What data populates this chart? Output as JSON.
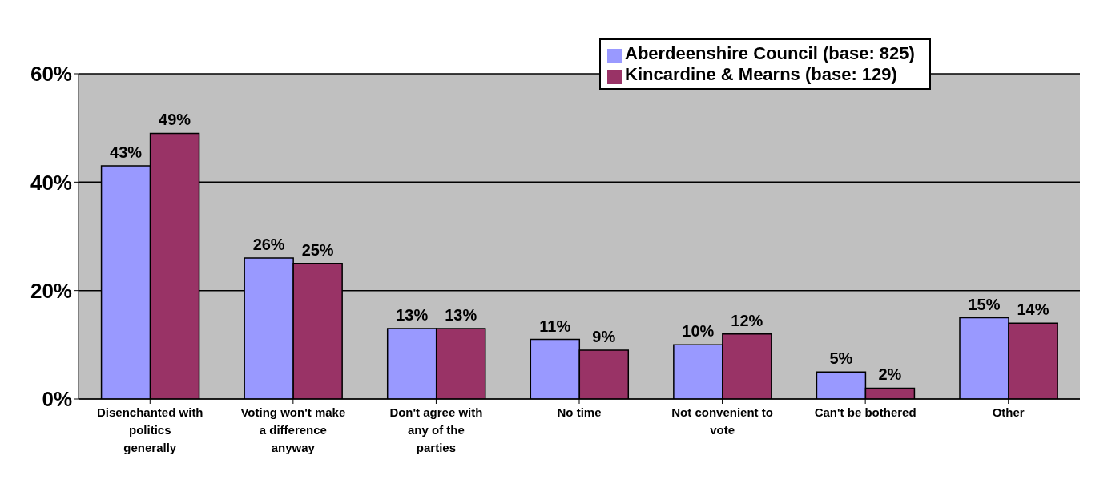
{
  "chart_data": {
    "type": "bar",
    "categories": [
      "Disenchanted with politics generally",
      "Voting won't make a difference anyway",
      "Don't agree with any of the parties",
      "No time",
      "Not convenient to vote",
      "Can't be bothered",
      "Other"
    ],
    "series": [
      {
        "name": "Aberdeenshire Council (base: 825)",
        "color": "#9999ff",
        "values": [
          43,
          26,
          13,
          11,
          10,
          5,
          15
        ],
        "value_labels": [
          "43%",
          "26%",
          "13%",
          "11%",
          "10%",
          "5%",
          "15%"
        ]
      },
      {
        "name": "Kincardine & Mearns (base: 129)",
        "color": "#993366",
        "values": [
          49,
          25,
          13,
          9,
          12,
          2,
          14
        ],
        "value_labels": [
          "49%",
          "25%",
          "13%",
          "9%",
          "12%",
          "2%",
          "14%"
        ]
      }
    ],
    "ylim": [
      0,
      60
    ],
    "yticks": [
      {
        "value": 0,
        "label": "0%"
      },
      {
        "value": 20,
        "label": "20%"
      },
      {
        "value": 40,
        "label": "40%"
      },
      {
        "value": 60,
        "label": "60%"
      }
    ],
    "grid": "y",
    "legend": "top right"
  }
}
